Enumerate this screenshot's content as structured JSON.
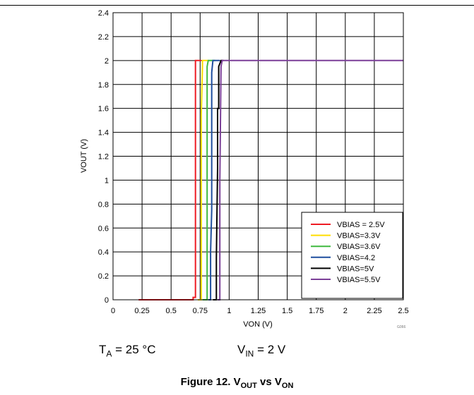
{
  "chart_data": {
    "type": "line",
    "title": "",
    "xlabel": "VON (V)",
    "ylabel": "VOUT (V)",
    "xlim": [
      0,
      2.5
    ],
    "ylim": [
      0,
      2.4
    ],
    "x_ticks": [
      0,
      0.25,
      0.5,
      0.75,
      1,
      1.25,
      1.5,
      1.75,
      2,
      2.25,
      2.5
    ],
    "x_tick_labels": [
      "0",
      "0.25",
      "0.5",
      "0.75",
      "1",
      "1.25",
      "1.5",
      "1.75",
      "2",
      "2.25",
      "2.5"
    ],
    "y_ticks": [
      0,
      0.2,
      0.4,
      0.6,
      0.8,
      1,
      1.2,
      1.4,
      1.6,
      1.8,
      2,
      2.2,
      2.4
    ],
    "y_tick_labels": [
      "0",
      "0.2",
      "0.4",
      "0.6",
      "0.8",
      "1",
      "1.2",
      "1.4",
      "1.6",
      "1.8",
      "2",
      "2.2",
      "2.4"
    ],
    "grid": true,
    "legend_position": "bottom-right",
    "series": [
      {
        "name": "VBIAS = 2.5V",
        "color": "#ee1c24",
        "points": [
          [
            0.22,
            0
          ],
          [
            0.69,
            0
          ],
          [
            0.69,
            0.02
          ],
          [
            0.71,
            0.02
          ],
          [
            0.71,
            2
          ],
          [
            0.76,
            2
          ]
        ]
      },
      {
        "name": "VBIAS=3.3V",
        "color": "#ffde00",
        "points": [
          [
            0.73,
            0
          ],
          [
            0.76,
            0
          ],
          [
            0.76,
            1.55
          ],
          [
            0.77,
            1.95
          ],
          [
            0.77,
            2
          ],
          [
            0.82,
            2
          ]
        ]
      },
      {
        "name": "VBIAS=3.6V",
        "color": "#3fb93f",
        "points": [
          [
            0.77,
            0
          ],
          [
            0.81,
            0
          ],
          [
            0.81,
            1.95
          ],
          [
            0.82,
            2
          ],
          [
            0.88,
            2
          ]
        ]
      },
      {
        "name": "VBIAS=4.2",
        "color": "#1f4e9e",
        "points": [
          [
            0.82,
            0
          ],
          [
            0.84,
            0
          ],
          [
            0.84,
            0.4
          ],
          [
            0.85,
            0.75
          ],
          [
            0.85,
            1.9
          ],
          [
            0.86,
            2
          ],
          [
            0.92,
            2
          ]
        ]
      },
      {
        "name": "VBIAS=5V",
        "color": "#000000",
        "points": [
          [
            0.86,
            0
          ],
          [
            0.89,
            0
          ],
          [
            0.89,
            0.35
          ],
          [
            0.9,
            1.1
          ],
          [
            0.9,
            1.6
          ],
          [
            0.91,
            1.6
          ],
          [
            0.91,
            1.95
          ],
          [
            0.93,
            2
          ],
          [
            0.95,
            2
          ]
        ]
      },
      {
        "name": "VBIAS=5.5V",
        "color": "#7b3f98",
        "points": [
          [
            0.9,
            0
          ],
          [
            0.92,
            0
          ],
          [
            0.92,
            1.0
          ],
          [
            0.93,
            1.95
          ],
          [
            0.94,
            2
          ],
          [
            2.5,
            2
          ]
        ]
      }
    ]
  },
  "conditions": {
    "ta_main": "T",
    "ta_sub": "A",
    "ta_value": " = 25 °C",
    "vin_main": "V",
    "vin_sub": "IN",
    "vin_value": " = 2 V"
  },
  "caption": {
    "prefix": "Figure 12. V",
    "sub1": "OUT",
    "middle": " vs V",
    "sub2": "ON"
  },
  "graphic_code": "G066"
}
